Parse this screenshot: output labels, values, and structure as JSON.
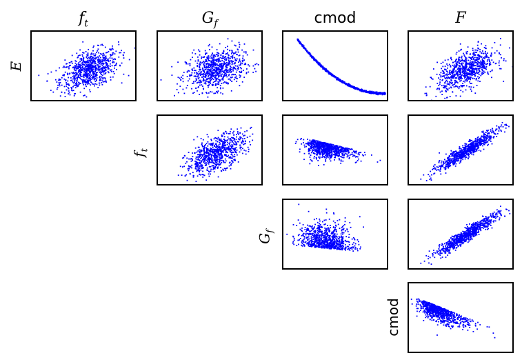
{
  "chart_data": {
    "type": "scatter",
    "title": "",
    "color": "#0000ff",
    "variables": [
      "E",
      "f_t",
      "G_f",
      "cmod",
      "F"
    ],
    "column_titles": [
      {
        "base": "f",
        "sub": "t",
        "math": true
      },
      {
        "base": "G",
        "sub": "f",
        "math": true
      },
      {
        "base": "cmod",
        "sub": "",
        "math": false
      },
      {
        "base": "F",
        "sub": "",
        "math": true
      }
    ],
    "row_labels": [
      {
        "base": "E",
        "sub": "",
        "math": true
      },
      {
        "base": "f",
        "sub": "t",
        "math": true
      },
      {
        "base": "G",
        "sub": "f",
        "math": true
      },
      {
        "base": "cmod",
        "sub": "",
        "math": false
      }
    ],
    "grid": false,
    "ticks": false,
    "points_per_panel": 1000,
    "panels": [
      {
        "row": 0,
        "col": 0,
        "y": "E",
        "x": "f_t",
        "correlation": 0.45,
        "pattern": "elliptical-positive"
      },
      {
        "row": 0,
        "col": 1,
        "y": "E",
        "x": "G_f",
        "correlation": 0.3,
        "pattern": "elliptical-positive"
      },
      {
        "row": 0,
        "col": 2,
        "y": "E",
        "x": "cmod",
        "correlation": -0.97,
        "pattern": "decreasing-curve"
      },
      {
        "row": 0,
        "col": 3,
        "y": "E",
        "x": "F",
        "correlation": 0.55,
        "pattern": "elliptical-positive"
      },
      {
        "row": 1,
        "col": 1,
        "y": "f_t",
        "x": "G_f",
        "correlation": 0.6,
        "pattern": "elliptical-positive"
      },
      {
        "row": 1,
        "col": 2,
        "y": "f_t",
        "x": "cmod",
        "correlation": -0.45,
        "pattern": "skewed-negative"
      },
      {
        "row": 1,
        "col": 3,
        "y": "f_t",
        "x": "F",
        "correlation": 0.9,
        "pattern": "linear-positive"
      },
      {
        "row": 2,
        "col": 2,
        "y": "G_f",
        "x": "cmod",
        "correlation": -0.2,
        "pattern": "skewed-negative"
      },
      {
        "row": 2,
        "col": 3,
        "y": "G_f",
        "x": "F",
        "correlation": 0.9,
        "pattern": "linear-positive"
      },
      {
        "row": 3,
        "col": 3,
        "y": "cmod",
        "x": "F",
        "correlation": -0.55,
        "pattern": "skewed-negative"
      }
    ]
  }
}
